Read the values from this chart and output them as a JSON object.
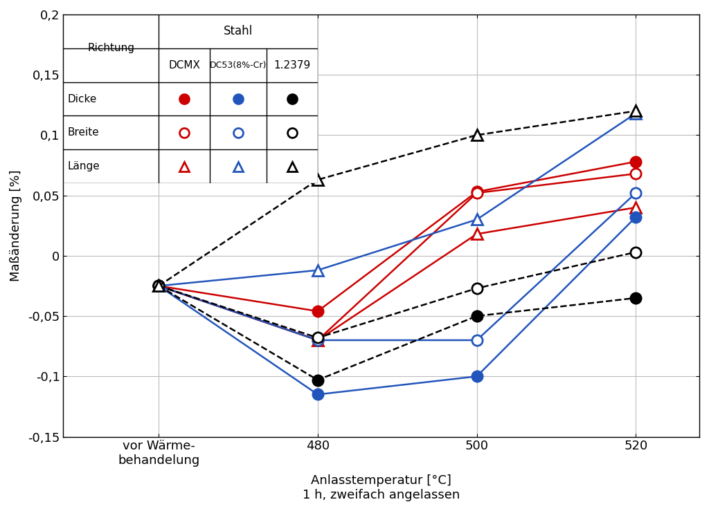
{
  "ylabel": "Maßänderung [%]",
  "xlabel_line1": "Anlasstemperatur [°C]",
  "xlabel_line2": "1 h, zweifach angelassen",
  "x_labels": [
    "vor Wärme-\nbehandelung",
    "480",
    "500",
    "520"
  ],
  "x_positions": [
    0,
    1,
    2,
    3
  ],
  "ylim": [
    -0.15,
    0.2
  ],
  "yticks": [
    -0.15,
    -0.1,
    -0.05,
    0,
    0.05,
    0.1,
    0.15,
    0.2
  ],
  "ytick_labels": [
    "-0,15",
    "-0,1",
    "-0,05",
    "0",
    "0,05",
    "0,1",
    "0,15",
    "0,2"
  ],
  "series": {
    "DCMX_Dicke": {
      "color": "#cc0000",
      "marker": "o",
      "filled": true,
      "ls": "-",
      "values": [
        -0.025,
        -0.046,
        0.053,
        0.078
      ]
    },
    "DCMX_Breite": {
      "color": "#cc0000",
      "marker": "o",
      "filled": false,
      "ls": "-",
      "values": [
        -0.025,
        -0.07,
        0.052,
        0.068
      ]
    },
    "DCMX_Laenge": {
      "color": "#cc0000",
      "marker": "^",
      "filled": false,
      "ls": "-",
      "values": [
        -0.025,
        -0.07,
        0.018,
        0.04
      ]
    },
    "DC53_Dicke": {
      "color": "#2255bb",
      "marker": "o",
      "filled": true,
      "ls": "-",
      "values": [
        -0.025,
        -0.115,
        -0.1,
        0.032
      ]
    },
    "DC53_Breite": {
      "color": "#2255bb",
      "marker": "o",
      "filled": false,
      "ls": "-",
      "values": [
        -0.025,
        -0.07,
        -0.07,
        0.052
      ]
    },
    "DC53_Laenge": {
      "color": "#2255bb",
      "marker": "^",
      "filled": false,
      "ls": "-",
      "values": [
        -0.025,
        -0.012,
        0.03,
        0.118
      ]
    },
    "1379_Dicke": {
      "color": "#000000",
      "marker": "o",
      "filled": true,
      "ls": "--",
      "values": [
        -0.025,
        -0.103,
        -0.05,
        -0.035
      ]
    },
    "1379_Breite": {
      "color": "#000000",
      "marker": "o",
      "filled": false,
      "ls": "--",
      "values": [
        -0.025,
        -0.068,
        -0.027,
        0.003
      ]
    },
    "1379_Laenge": {
      "color": "#000000",
      "marker": "^",
      "filled": false,
      "ls": "--",
      "values": [
        -0.025,
        0.063,
        0.1,
        0.12
      ]
    }
  },
  "legend": {
    "col_headers": [
      "DCMX",
      "DC53(8%-Cr)",
      "1.2379"
    ],
    "row_headers": [
      "Dicke",
      "Breite",
      "Länge"
    ],
    "stahl_label": "Stahl",
    "richtung_label": "Richtung"
  },
  "background_color": "#ffffff",
  "grid_color": "#bbbbbb",
  "marker_size": 11,
  "linewidth": 1.8
}
